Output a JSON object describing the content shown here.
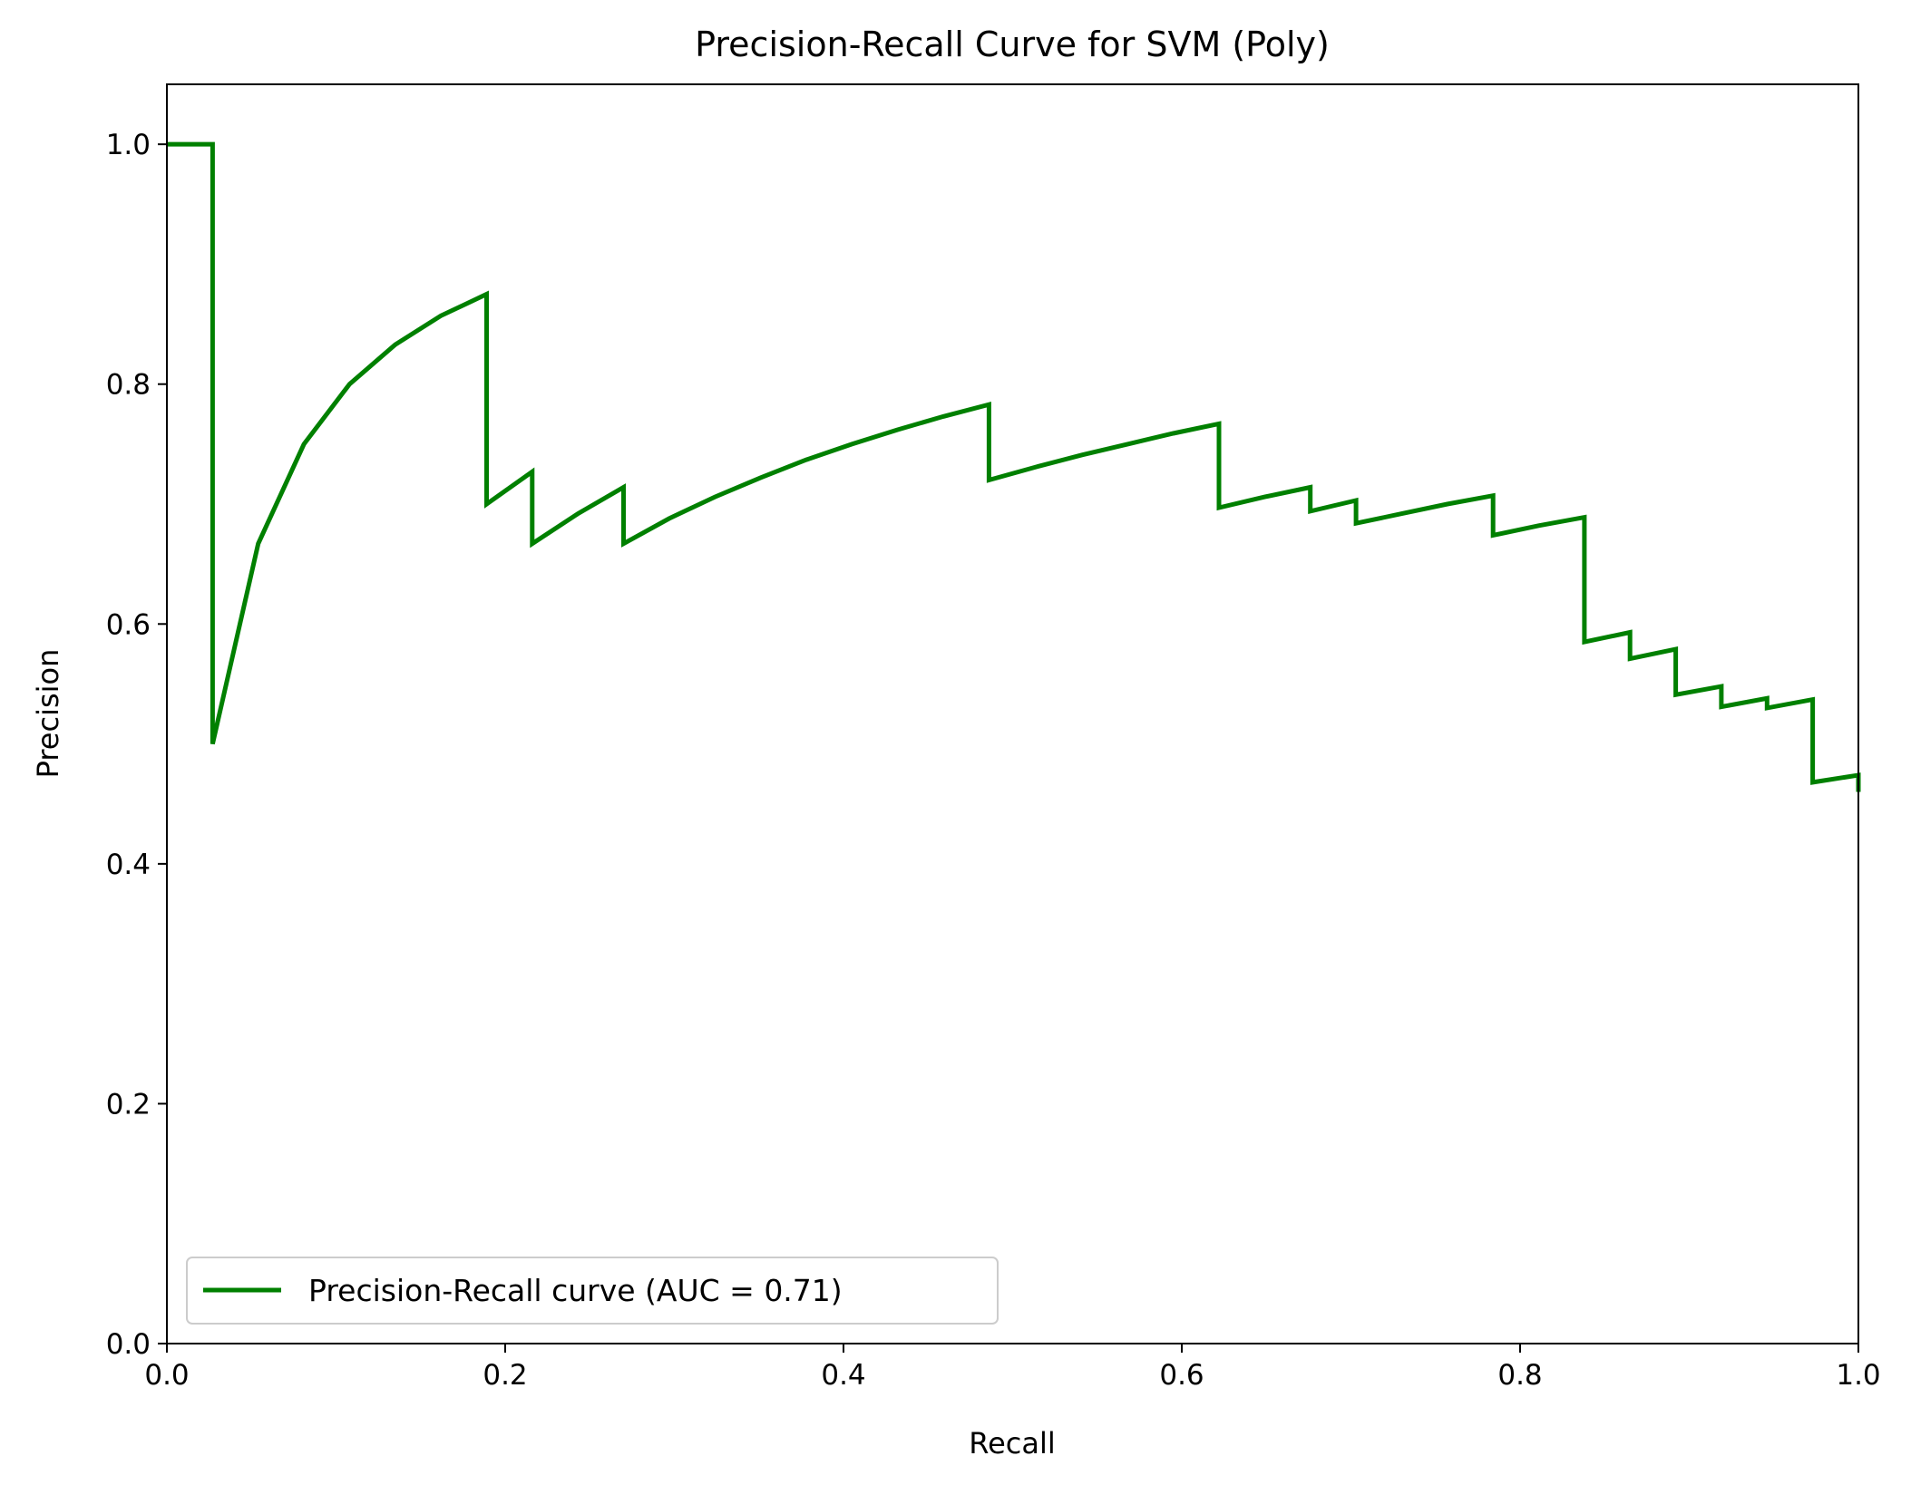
{
  "chart_data": {
    "type": "line",
    "title": "Precision-Recall Curve for SVM (Poly)",
    "xlabel": "Recall",
    "ylabel": "Precision",
    "xlim": [
      0.0,
      1.0
    ],
    "ylim": [
      0.0,
      1.05
    ],
    "xticks": [
      "0.0",
      "0.2",
      "0.4",
      "0.6",
      "0.8",
      "1.0"
    ],
    "yticks": [
      "0.0",
      "0.2",
      "0.4",
      "0.6",
      "0.8",
      "1.0"
    ],
    "grid": false,
    "legend_position": "lower-left",
    "series": [
      {
        "name": "Precision-Recall curve (AUC = 0.71)",
        "color": "#008000",
        "x": [
          0.0,
          0.027,
          0.027,
          0.054,
          0.081,
          0.108,
          0.135,
          0.162,
          0.189,
          0.189,
          0.216,
          0.216,
          0.243,
          0.27,
          0.27,
          0.297,
          0.324,
          0.351,
          0.378,
          0.405,
          0.432,
          0.459,
          0.486,
          0.486,
          0.514,
          0.541,
          0.568,
          0.595,
          0.622,
          0.622,
          0.649,
          0.676,
          0.676,
          0.703,
          0.703,
          0.73,
          0.757,
          0.784,
          0.784,
          0.811,
          0.838,
          0.838,
          0.865,
          0.865,
          0.892,
          0.892,
          0.919,
          0.919,
          0.946,
          0.946,
          0.973,
          0.973,
          1.0,
          1.0
        ],
        "y": [
          1.0,
          1.0,
          0.5,
          0.667,
          0.75,
          0.8,
          0.833,
          0.857,
          0.875,
          0.7,
          0.727,
          0.667,
          0.692,
          0.714,
          0.667,
          0.688,
          0.706,
          0.722,
          0.737,
          0.75,
          0.762,
          0.773,
          0.783,
          0.72,
          0.731,
          0.741,
          0.75,
          0.759,
          0.767,
          0.697,
          0.706,
          0.714,
          0.694,
          0.703,
          0.684,
          0.692,
          0.7,
          0.707,
          0.674,
          0.682,
          0.689,
          0.585,
          0.593,
          0.571,
          0.579,
          0.541,
          0.548,
          0.531,
          0.538,
          0.53,
          0.537,
          0.468,
          0.474,
          0.46
        ]
      }
    ]
  }
}
